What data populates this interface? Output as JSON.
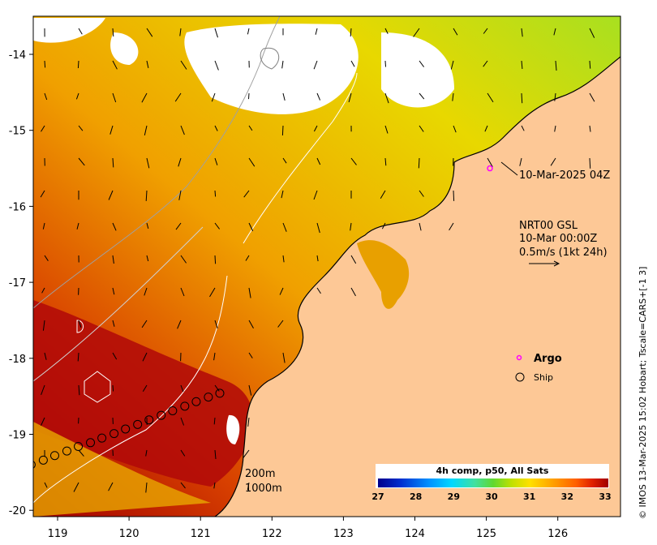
{
  "y_ticks": [
    "-14",
    "-15",
    "-16",
    "-17",
    "-18",
    "-19",
    "-20"
  ],
  "x_ticks": [
    "119",
    "120",
    "121",
    "122",
    "123",
    "124",
    "125",
    "126"
  ],
  "annotations": {
    "argo_timestamp": "10-Mar-2025 04Z",
    "current_product": "NRT00 GSL",
    "current_time": "10-Mar 00:00Z",
    "current_scale": "0.5m/s (1kt 24h)"
  },
  "legend": {
    "argo": "Argo",
    "ship": "Ship"
  },
  "isobaths": {
    "shallow": "200m",
    "deep": "1000m"
  },
  "colorbar": {
    "title": "4h comp, p50, All Sats",
    "ticks": [
      "27",
      "28",
      "29",
      "30",
      "31",
      "32",
      "33"
    ],
    "colors": [
      "#00008b",
      "#0030d0",
      "#0090ff",
      "#00d8ff",
      "#40e0a0",
      "#60d830",
      "#c0e000",
      "#ffe000",
      "#ffa000",
      "#ff6000",
      "#e02000",
      "#a00000"
    ]
  },
  "credit": "© IMOS 13-Mar-2025 15:02 Hobart; Tscale=CARS+[-1 3]",
  "colors": {
    "land": "#fdc896",
    "argo": "#ff00ff",
    "ship": "#000000",
    "cloud": "#ffffff"
  },
  "ship_track": [
    {
      "lon": 118.63,
      "lat": -19.4
    },
    {
      "lon": 118.8,
      "lat": -19.34
    },
    {
      "lon": 118.96,
      "lat": -19.28
    },
    {
      "lon": 119.13,
      "lat": -19.22
    },
    {
      "lon": 119.29,
      "lat": -19.16
    },
    {
      "lon": 119.46,
      "lat": -19.11
    },
    {
      "lon": 119.62,
      "lat": -19.05
    },
    {
      "lon": 119.79,
      "lat": -18.99
    },
    {
      "lon": 119.95,
      "lat": -18.93
    },
    {
      "lon": 120.12,
      "lat": -18.87
    },
    {
      "lon": 120.28,
      "lat": -18.81
    },
    {
      "lon": 120.45,
      "lat": -18.75
    },
    {
      "lon": 120.61,
      "lat": -18.69
    },
    {
      "lon": 120.78,
      "lat": -18.63
    },
    {
      "lon": 120.94,
      "lat": -18.57
    },
    {
      "lon": 121.11,
      "lat": -18.51
    },
    {
      "lon": 121.27,
      "lat": -18.46
    }
  ],
  "argo_float": {
    "lon": 125.05,
    "lat": -15.5
  }
}
